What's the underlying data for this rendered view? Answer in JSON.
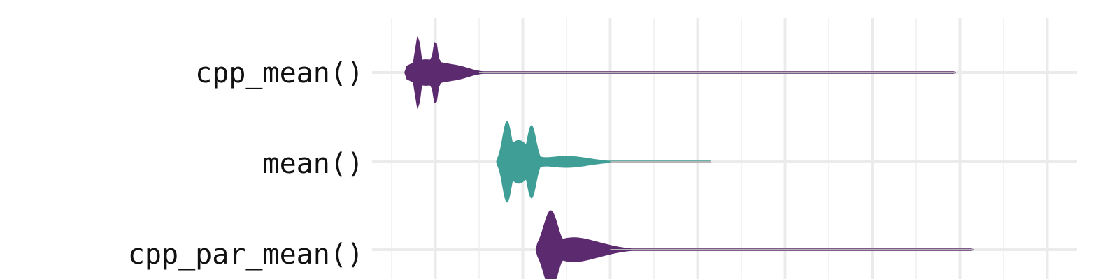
{
  "chart_data": {
    "type": "violin",
    "orientation": "horizontal",
    "title": "",
    "xlabel": "",
    "ylabel": "",
    "xlim": [
      0,
      8
    ],
    "grid": true,
    "legend": "none",
    "categories": [
      "cpp_mean()",
      "mean()",
      "cpp_par_mean()"
    ],
    "series": [
      {
        "category": "cpp_mean()",
        "color": "#5c2a6e",
        "range": [
          0.15,
          6.45
        ],
        "peaks": [
          0.3,
          0.5
        ],
        "bulk_end": 1.0
      },
      {
        "category": "mean()",
        "color": "#3f9e96",
        "range": [
          1.2,
          3.65
        ],
        "peaks": [
          1.3,
          1.6
        ],
        "bulk_end": 2.5
      },
      {
        "category": "cpp_par_mean()",
        "color": "#5c2a6e",
        "range": [
          1.65,
          6.65
        ],
        "peaks": [
          1.8
        ],
        "bulk_end": 2.5
      }
    ]
  }
}
